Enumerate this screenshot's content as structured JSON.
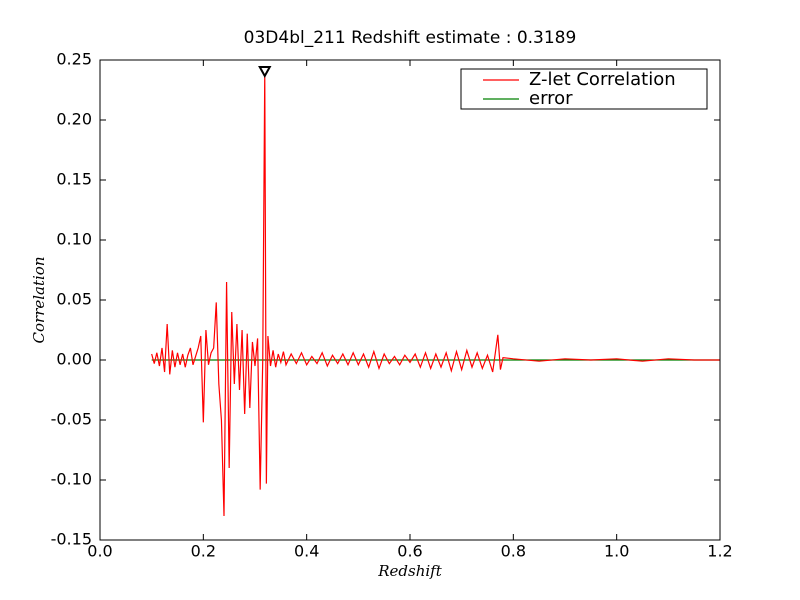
{
  "chart_data": {
    "type": "line",
    "title": "03D4bl_211 Redshift estimate : 0.3189",
    "x_label": "Redshift",
    "y_label": "Correlation",
    "xlim": [
      0,
      1.2
    ],
    "ylim": [
      -0.15,
      0.25
    ],
    "xticks": [
      {
        "value": 0,
        "label": "0.0"
      },
      0.2,
      0.4,
      0.6,
      0.8,
      {
        "value": 1,
        "label": "1.0"
      },
      1.2
    ],
    "yticks": [
      {
        "value": -0.15,
        "label": "-0.15"
      },
      {
        "value": -0.1,
        "label": "-0.10"
      },
      -0.05,
      {
        "value": 0,
        "label": "0.00"
      },
      0.05,
      {
        "value": 0.1,
        "label": "0.10"
      },
      0.15,
      {
        "value": 0.2,
        "label": "0.20"
      },
      0.25
    ],
    "legend": "upper right",
    "series": [
      {
        "name": "Z-let Correlation",
        "color": "#ff0000",
        "x": [
          0.1,
          0.105,
          0.11,
          0.115,
          0.12,
          0.125,
          0.13,
          0.135,
          0.14,
          0.145,
          0.15,
          0.155,
          0.16,
          0.165,
          0.17,
          0.175,
          0.18,
          0.185,
          0.19,
          0.195,
          0.2,
          0.205,
          0.21,
          0.215,
          0.22,
          0.225,
          0.23,
          0.235,
          0.24,
          0.245,
          0.25,
          0.255,
          0.26,
          0.265,
          0.27,
          0.275,
          0.28,
          0.285,
          0.29,
          0.295,
          0.3,
          0.305,
          0.31,
          0.315,
          0.3189,
          0.322,
          0.325,
          0.33,
          0.335,
          0.34,
          0.345,
          0.35,
          0.355,
          0.36,
          0.37,
          0.38,
          0.39,
          0.4,
          0.41,
          0.42,
          0.43,
          0.44,
          0.45,
          0.46,
          0.47,
          0.48,
          0.49,
          0.5,
          0.51,
          0.52,
          0.53,
          0.54,
          0.55,
          0.56,
          0.57,
          0.58,
          0.59,
          0.6,
          0.61,
          0.62,
          0.63,
          0.64,
          0.65,
          0.66,
          0.67,
          0.68,
          0.69,
          0.7,
          0.71,
          0.72,
          0.73,
          0.74,
          0.75,
          0.76,
          0.77,
          0.775,
          0.78,
          0.8,
          0.85,
          0.9,
          0.95,
          1.0,
          1.05,
          1.1,
          1.15,
          1.2
        ],
        "values": [
          0.005,
          -0.003,
          0.006,
          -0.005,
          0.01,
          -0.01,
          0.03,
          -0.012,
          0.008,
          -0.006,
          0.006,
          -0.004,
          0.005,
          -0.006,
          0.004,
          0.01,
          -0.004,
          0.003,
          0.01,
          0.02,
          -0.052,
          0.025,
          -0.004,
          0.006,
          0.01,
          0.048,
          -0.02,
          -0.05,
          -0.13,
          0.065,
          -0.09,
          0.04,
          -0.02,
          0.03,
          -0.025,
          0.025,
          -0.045,
          0.022,
          -0.04,
          0.015,
          -0.005,
          0.018,
          -0.108,
          0.0,
          0.24,
          -0.103,
          0.02,
          -0.005,
          0.008,
          -0.006,
          0.005,
          -0.002,
          0.007,
          -0.004,
          0.005,
          -0.003,
          0.006,
          -0.004,
          0.003,
          -0.003,
          0.006,
          -0.005,
          0.004,
          -0.003,
          0.005,
          -0.004,
          0.006,
          -0.004,
          0.005,
          -0.006,
          0.007,
          -0.007,
          0.005,
          -0.003,
          0.003,
          -0.004,
          0.004,
          -0.002,
          0.005,
          -0.006,
          0.006,
          -0.007,
          0.005,
          -0.006,
          0.006,
          -0.009,
          0.007,
          -0.008,
          0.008,
          -0.006,
          0.006,
          -0.007,
          0.004,
          -0.01,
          0.021,
          -0.008,
          0.002,
          0.001,
          -0.001,
          0.001,
          0.0,
          0.001,
          -0.001,
          0.001,
          0.0,
          0.0
        ]
      },
      {
        "name": "error",
        "color": "#008000",
        "x": [
          0.1,
          0.3,
          0.5,
          0.7,
          0.9,
          1.1,
          1.2
        ],
        "values": [
          0.0,
          0.0,
          0.0,
          0.0,
          0.0,
          0.0,
          0.0
        ]
      }
    ],
    "markers": [
      {
        "x": 0.3189,
        "y": 0.24
      }
    ]
  }
}
